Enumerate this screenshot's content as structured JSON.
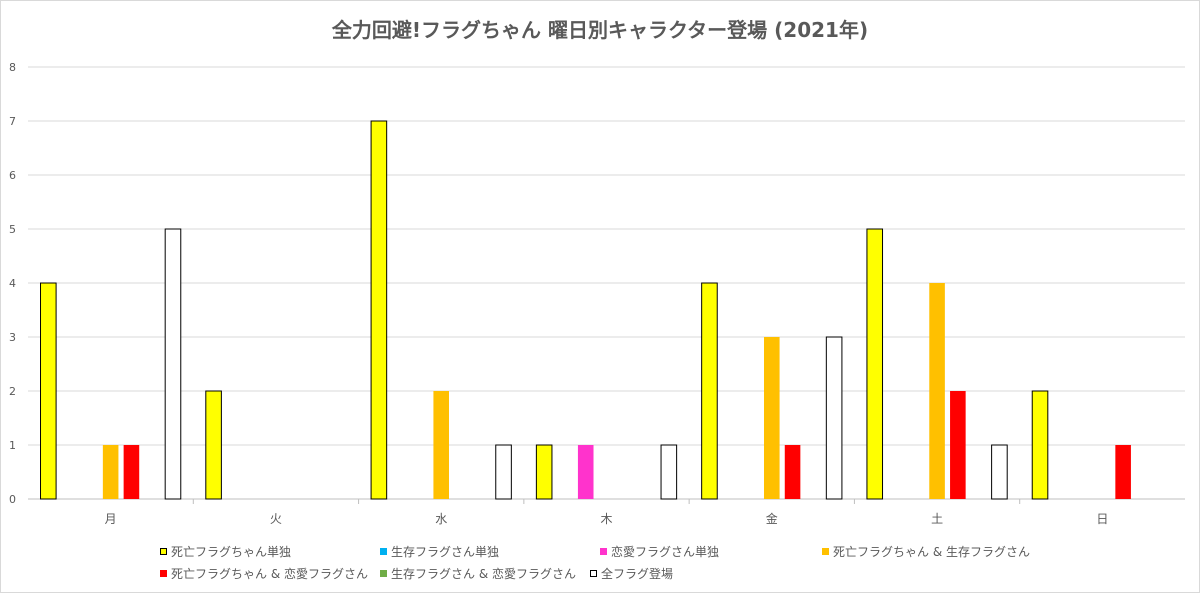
{
  "chart_data": {
    "type": "bar",
    "title": "全力回避!フラグちゃん 曜日別キャラクター登場 (2021年)",
    "categories": [
      "月",
      "火",
      "水",
      "木",
      "金",
      "土",
      "日"
    ],
    "ylim": [
      0,
      8
    ],
    "yticks": [
      0,
      1,
      2,
      3,
      4,
      5,
      6,
      7,
      8
    ],
    "grid": true,
    "legend_position": "bottom",
    "series": [
      {
        "name": "死亡フラグちゃん単独",
        "color": "#FFFF00",
        "outline": "#000000",
        "values": [
          4,
          2,
          7,
          1,
          4,
          5,
          2
        ]
      },
      {
        "name": "生存フラグさん単独",
        "color": "#00B0F0",
        "outline": "",
        "values": [
          0,
          0,
          0,
          0,
          0,
          0,
          0
        ]
      },
      {
        "name": "恋愛フラグさん単独",
        "color": "#FF33CC",
        "outline": "",
        "values": [
          0,
          0,
          0,
          1,
          0,
          0,
          0
        ]
      },
      {
        "name": "死亡フラグちゃん & 生存フラグさん",
        "color": "#FFC000",
        "outline": "",
        "values": [
          1,
          0,
          2,
          0,
          3,
          4,
          0
        ]
      },
      {
        "name": "死亡フラグちゃん & 恋愛フラグさん",
        "color": "#FF0000",
        "outline": "",
        "values": [
          1,
          0,
          0,
          0,
          1,
          2,
          1
        ]
      },
      {
        "name": "生存フラグさん & 恋愛フラグさん",
        "color": "#70AD47",
        "outline": "",
        "values": [
          0,
          0,
          0,
          0,
          0,
          0,
          0
        ]
      },
      {
        "name": "全フラグ登場",
        "color": "#FFFFFF",
        "outline": "#000000",
        "values": [
          5,
          0,
          1,
          1,
          3,
          1,
          0
        ]
      }
    ]
  }
}
